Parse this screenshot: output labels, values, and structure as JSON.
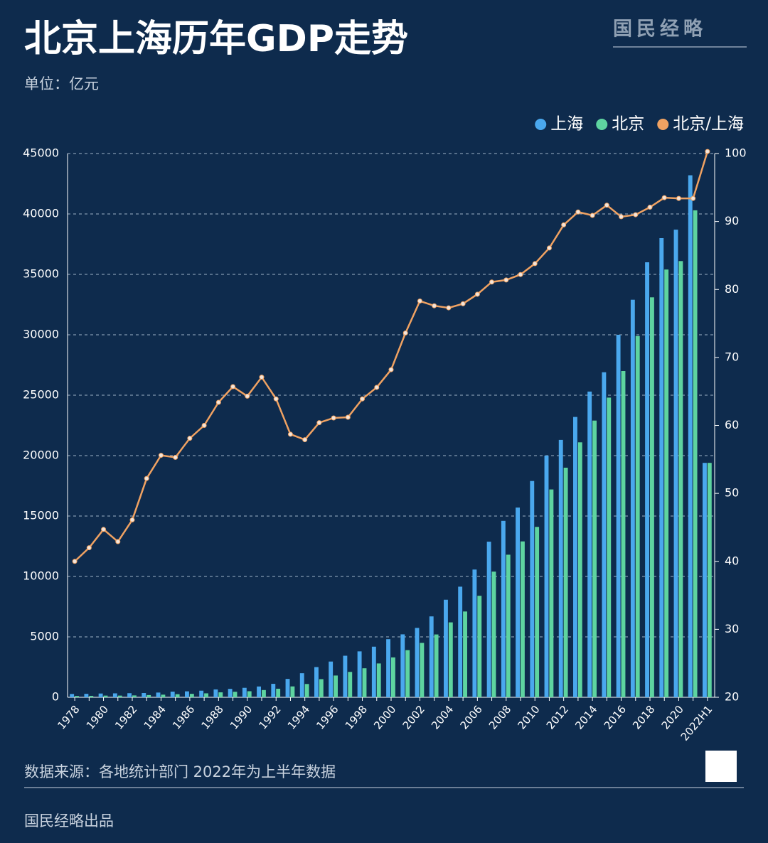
{
  "chart_data": {
    "type": "bar",
    "title": "北京上海历年GDP走势",
    "subtitle": "单位：亿元",
    "source": "数据来源：各地统计部门 2022年为上半年数据",
    "credit": "国民经略出品",
    "brand": "国民经略",
    "categories": [
      "1978",
      null,
      "1980",
      null,
      "1982",
      null,
      "1984",
      null,
      "1986",
      null,
      "1988",
      null,
      "1990",
      null,
      "1992",
      null,
      "1994",
      null,
      "1996",
      null,
      "1998",
      null,
      "2000",
      null,
      "2002",
      null,
      "2004",
      null,
      "2006",
      null,
      "2008",
      null,
      "2010",
      null,
      "2012",
      null,
      "2014",
      null,
      "2016",
      null,
      "2018",
      null,
      "2020",
      null,
      "2022H1"
    ],
    "series": [
      {
        "name": "上海",
        "color": "#4aa8ee",
        "type": "bar",
        "values": [
          273,
          286,
          312,
          325,
          338,
          352,
          391,
          467,
          491,
          546,
          649,
          697,
          782,
          894,
          1114,
          1520,
          1991,
          2500,
          2958,
          3439,
          3801,
          4189,
          4812,
          5210,
          5741,
          6694,
          8073,
          9154,
          10572,
          12878,
          14600,
          15700,
          17900,
          20000,
          21300,
          23200,
          25300,
          26900,
          30000,
          32900,
          36000,
          38000,
          38700,
          43200,
          19400
        ]
      },
      {
        "name": "北京",
        "color": "#5ed4a0",
        "type": "bar",
        "values": [
          109,
          120,
          139,
          139,
          155,
          183,
          217,
          257,
          285,
          327,
          410,
          456,
          501,
          599,
          709,
          900,
          1100,
          1500,
          1800,
          2100,
          2400,
          2800,
          3300,
          3900,
          4500,
          5200,
          6200,
          7100,
          8400,
          10400,
          11800,
          12900,
          14100,
          17200,
          19000,
          21100,
          22900,
          24800,
          27000,
          29900,
          33100,
          35400,
          36100,
          40300,
          19400
        ]
      },
      {
        "name": "北京/上海",
        "color": "#f0a262",
        "type": "line",
        "axis": "y2",
        "values": [
          40.0,
          42.0,
          44.7,
          42.9,
          46.1,
          52.2,
          55.6,
          55.3,
          58.1,
          60.0,
          63.4,
          65.7,
          64.3,
          67.1,
          63.9,
          58.7,
          57.9,
          60.4,
          61.1,
          61.2,
          63.9,
          65.6,
          68.2,
          73.6,
          78.3,
          77.6,
          77.3,
          77.9,
          79.3,
          81.1,
          81.4,
          82.2,
          83.8,
          86.1,
          89.5,
          91.4,
          90.9,
          92.4,
          90.7,
          91.0,
          92.1,
          93.5,
          93.4,
          93.4,
          100.3
        ]
      }
    ],
    "ylim": [
      0,
      45000
    ],
    "yticks": [
      0,
      5000,
      10000,
      15000,
      20000,
      25000,
      30000,
      35000,
      40000,
      45000
    ],
    "y2lim": [
      20,
      100
    ],
    "y2ticks": [
      20,
      30,
      40,
      50,
      60,
      70,
      80,
      90,
      100
    ],
    "grid": true
  }
}
